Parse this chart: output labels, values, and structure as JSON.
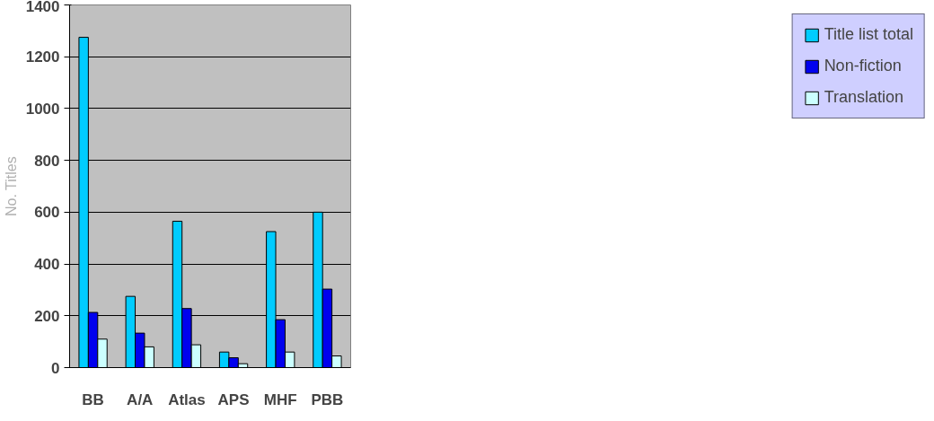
{
  "chart_data": {
    "type": "bar",
    "ylabel": "No. Titles",
    "categories": [
      "BB",
      "A/A",
      "Atlas",
      "APS",
      "MHF",
      "PBB"
    ],
    "series": [
      {
        "name": "Title list total",
        "color": "#00ccff",
        "values": [
          1275,
          275,
          565,
          60,
          525,
          600
        ]
      },
      {
        "name": "Non-fiction",
        "color": "#0000ee",
        "values": [
          213,
          133,
          228,
          38,
          185,
          303
        ]
      },
      {
        "name": "Translation",
        "color": "#ccffff",
        "values": [
          110,
          80,
          88,
          15,
          60,
          45
        ]
      }
    ],
    "ylim": [
      0,
      1400
    ],
    "yticks": [
      0,
      200,
      400,
      600,
      800,
      1000,
      1200,
      1400
    ],
    "grid": "y",
    "legend": "right"
  }
}
